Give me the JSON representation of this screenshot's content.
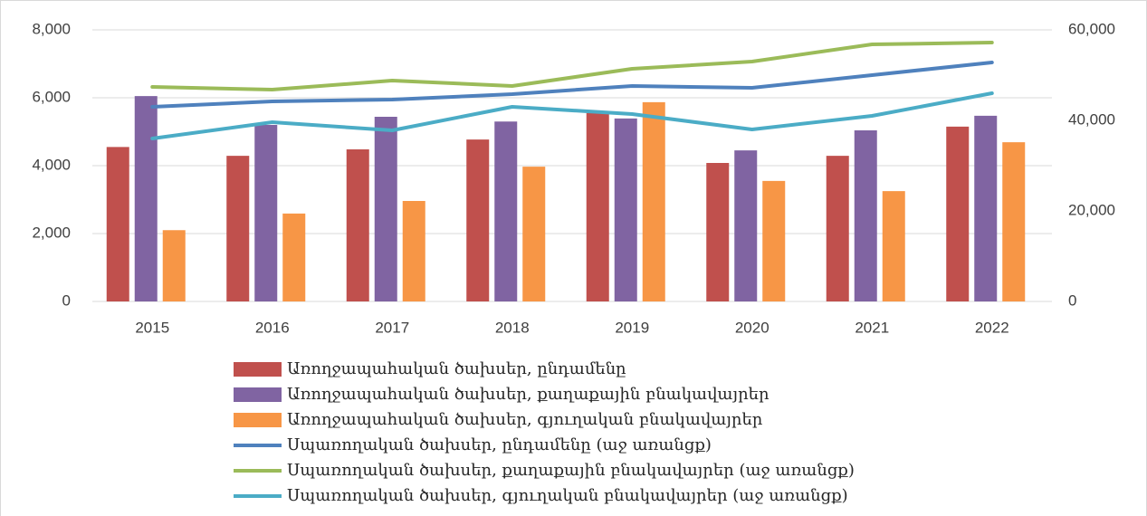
{
  "chart_data": {
    "type": "bar_line",
    "categories": [
      "2015",
      "2016",
      "2017",
      "2018",
      "2019",
      "2020",
      "2021",
      "2022"
    ],
    "series": [
      {
        "name": "Առողջապահական ծախսեր, ընդամենը",
        "type": "bar",
        "color": "#c0504d",
        "values": [
          4550,
          4290,
          4480,
          4770,
          5550,
          4080,
          4290,
          5150
        ]
      },
      {
        "name": "Առողջապահական ծախսեր, քաղաքային բնակավայրեր",
        "type": "bar",
        "color": "#8064a2",
        "values": [
          6050,
          5200,
          5440,
          5300,
          5390,
          4450,
          5040,
          5470
        ]
      },
      {
        "name": "Առողջապահական ծախսեր, գյուղական բնակավայրեր",
        "type": "bar",
        "color": "#f79646",
        "values": [
          2100,
          2590,
          2960,
          3970,
          5870,
          3550,
          3250,
          4690
        ]
      },
      {
        "name": "Սպառողական ծախսեր, ընդամենը (աջ առանցք)",
        "type": "line",
        "axis": "y2",
        "color": "#4f81bd",
        "values": [
          43000,
          44200,
          44600,
          45800,
          47600,
          47200,
          50000,
          52800
        ]
      },
      {
        "name": "Սպառողական ծախսեր, քաղաքային բնակավայրեր (աջ առանցք)",
        "type": "line",
        "axis": "y2",
        "color": "#9bbb59",
        "values": [
          47400,
          46800,
          48800,
          47600,
          51400,
          53000,
          56800,
          57200
        ]
      },
      {
        "name": "Սպառողական ծախսեր, գյուղական բնակավայրեր (աջ առանցք)",
        "type": "line",
        "axis": "y2",
        "color": "#4bacc6",
        "values": [
          36000,
          39600,
          37800,
          43000,
          41400,
          38000,
          41000,
          46000
        ]
      }
    ],
    "ylim": [
      0,
      8000
    ],
    "yticks": [
      0,
      {
        "value": 2000,
        "label": "2,000"
      },
      {
        "value": 4000,
        "label": "4,000"
      },
      {
        "value": 6000,
        "label": "6,000"
      },
      {
        "value": 8000,
        "label": "8,000"
      }
    ],
    "y2lim": [
      0,
      60000
    ],
    "y2ticks": [
      0,
      {
        "value": 20000,
        "label": "20,000"
      },
      {
        "value": 40000,
        "label": "40,000"
      },
      {
        "value": 60000,
        "label": "60,000"
      }
    ],
    "grid": true
  }
}
